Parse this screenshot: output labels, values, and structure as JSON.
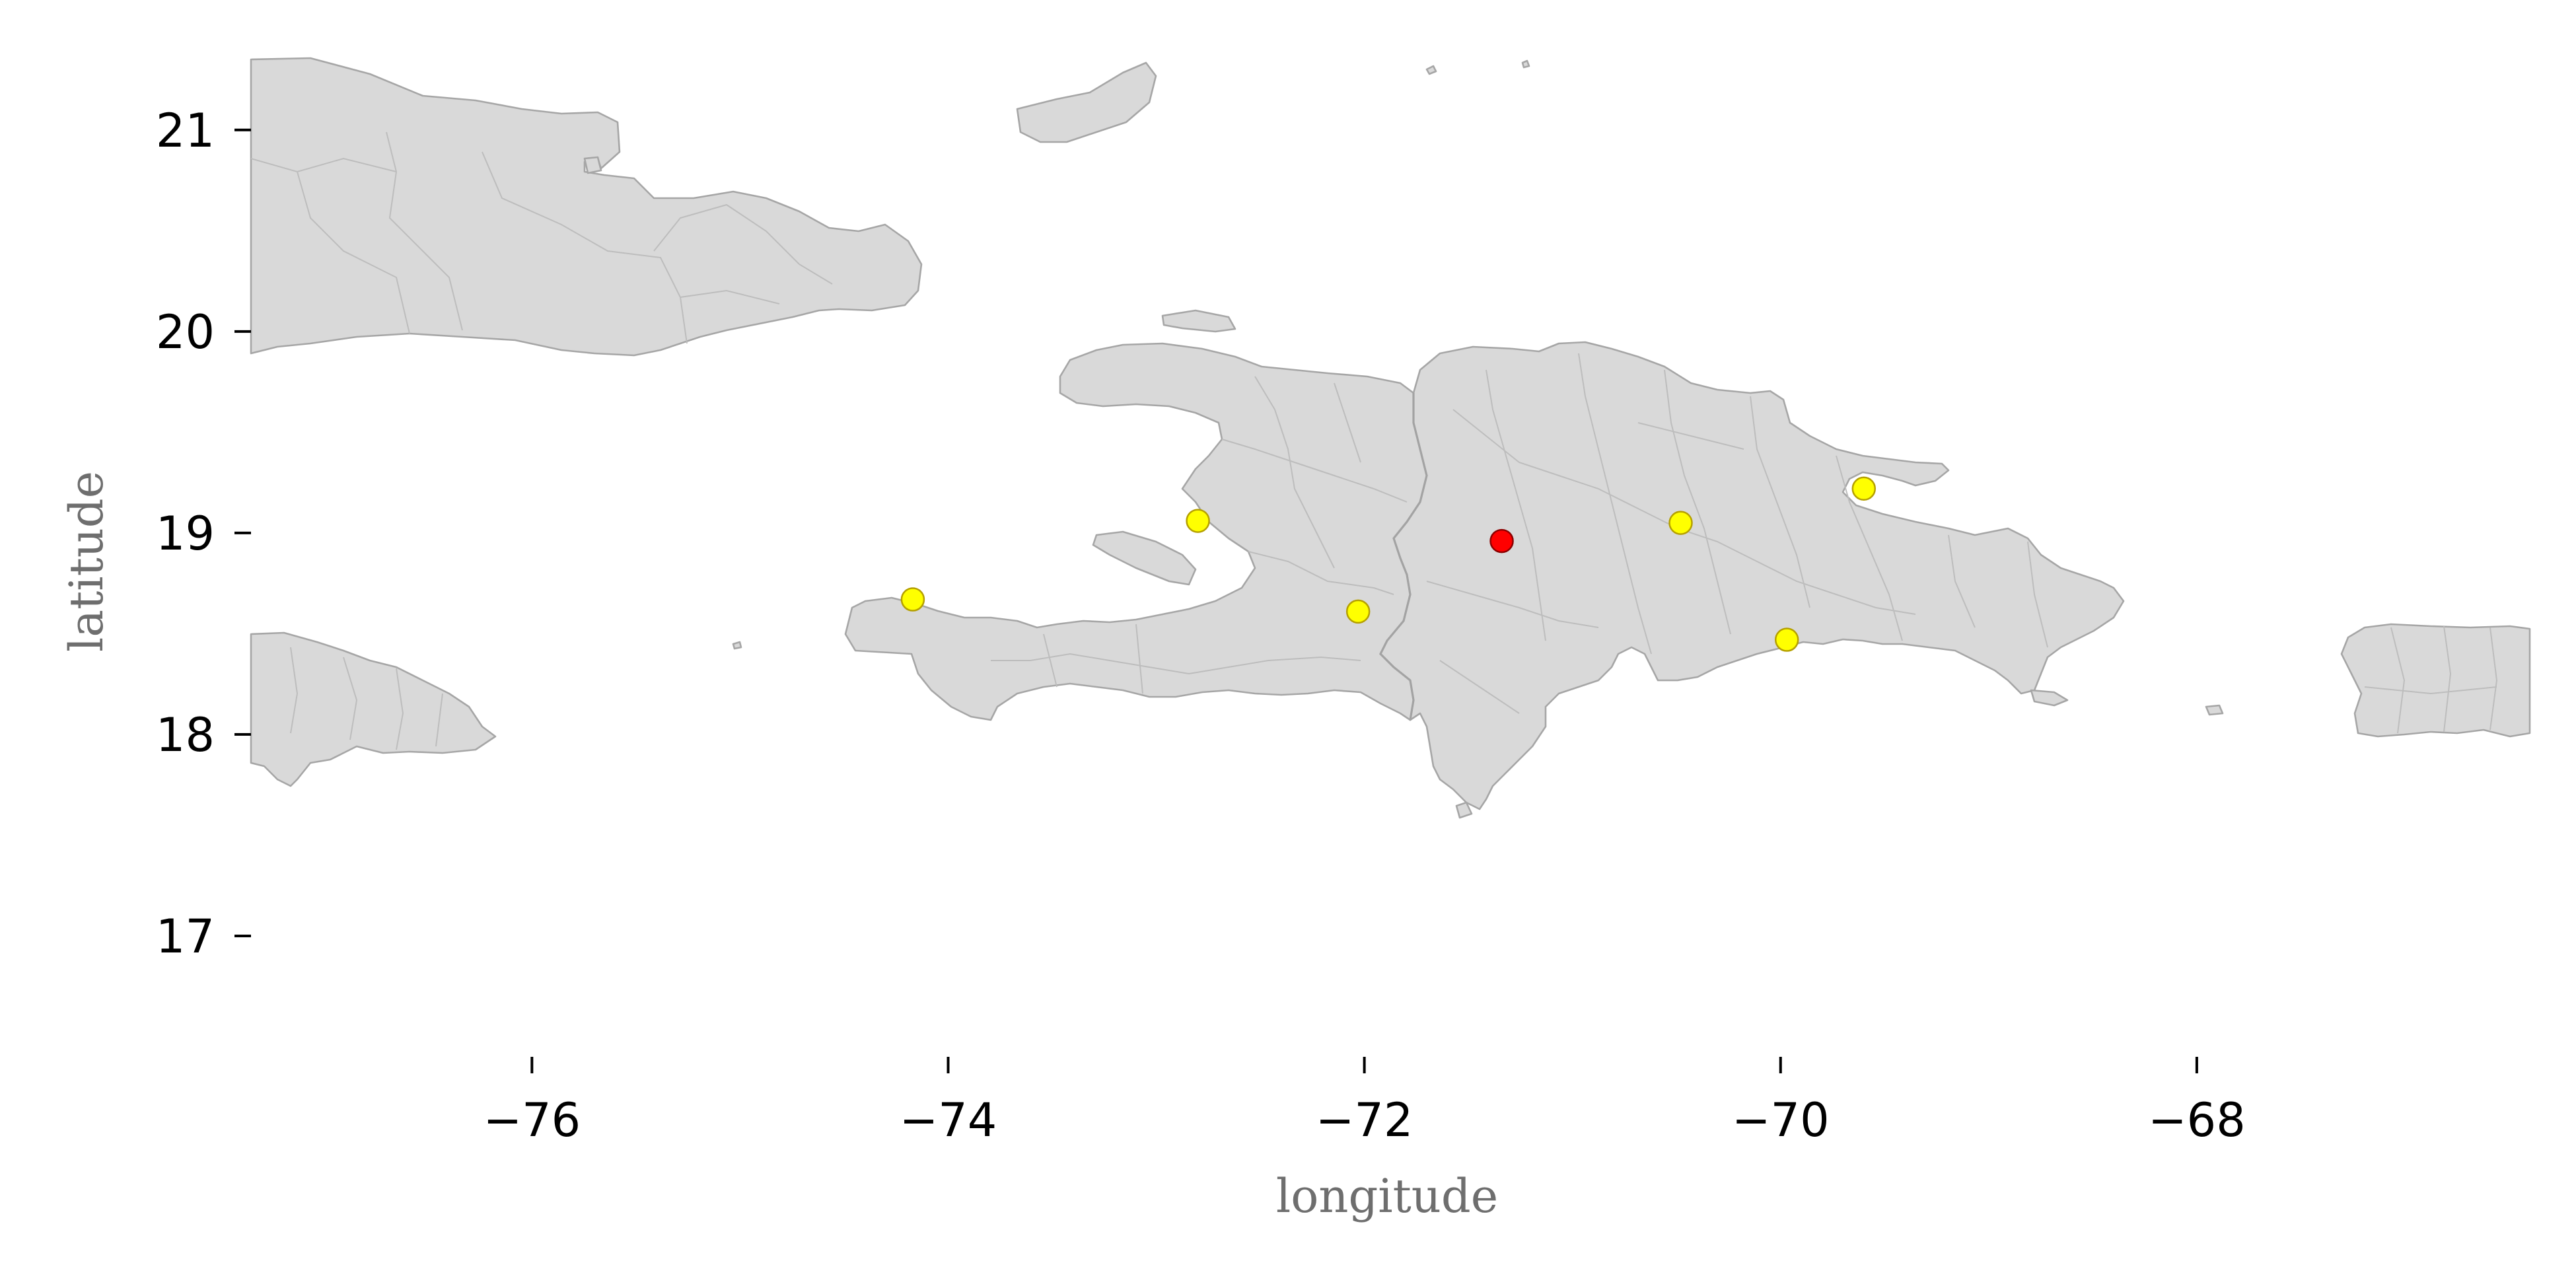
{
  "chart_data": {
    "type": "scatter",
    "title": "",
    "xlabel": "longitude",
    "ylabel": "latitude",
    "xlim": [
      -77.35,
      -66.4
    ],
    "ylim": [
      16.4,
      21.35
    ],
    "xticks": [
      -76,
      -74,
      -72,
      -70,
      -68
    ],
    "yticks": [
      17,
      18,
      19,
      20,
      21
    ],
    "xtick_labels": [
      "−76",
      "−74",
      "−72",
      "−70",
      "−68"
    ],
    "ytick_labels": [
      "17",
      "18",
      "19",
      "20",
      "21"
    ],
    "grid": false,
    "legend": "none",
    "basemap": "Greater Antilles: Cuba, Jamaica, Hispaniola (Haiti and Dominican Republic), Puerto Rico with internal administrative boundaries",
    "colors": {
      "land_fill": "#d9d9d9",
      "land_edge": "#a6a6a6",
      "highlight_point": "#ff0000",
      "point": "#ffff00",
      "point_edge": "#b5a000",
      "highlight_edge": "#8b0000"
    },
    "series": [
      {
        "points": [
          {
            "lon": -74.17,
            "lat": 18.67
          },
          {
            "lon": -72.8,
            "lat": 19.06
          },
          {
            "lon": -72.03,
            "lat": 18.61
          },
          {
            "lon": -70.48,
            "lat": 19.05
          },
          {
            "lon": -69.6,
            "lat": 19.22
          },
          {
            "lon": -69.97,
            "lat": 18.47
          }
        ]
      },
      {
        "points": [
          {
            "lon": -71.34,
            "lat": 18.96
          }
        ]
      }
    ]
  }
}
